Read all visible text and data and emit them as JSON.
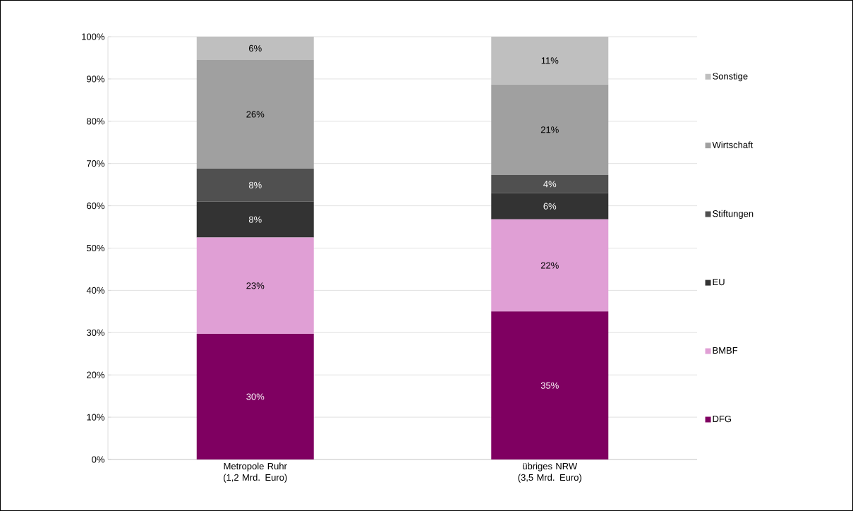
{
  "chart_data": {
    "type": "bar",
    "stacked": true,
    "categories": [
      "Metropole Ruhr (1,2 Mrd. Euro)",
      "übriges NRW (3,5 Mrd. Euro)"
    ],
    "series": [
      {
        "name": "DFG",
        "color": "#7f0061",
        "values": [
          29.7,
          35.0
        ],
        "value_labels": [
          "30%",
          "35%"
        ]
      },
      {
        "name": "BMBF",
        "color": "#e09fd5",
        "values": [
          22.8,
          21.8
        ],
        "value_labels": [
          "23%",
          "22%"
        ]
      },
      {
        "name": "EU",
        "color": "#333333",
        "values": [
          8.5,
          6.2
        ],
        "value_labels": [
          "8%",
          "6%"
        ]
      },
      {
        "name": "Stiftungen",
        "color": "#505050",
        "values": [
          7.8,
          4.3
        ],
        "value_labels": [
          "8%",
          "4%"
        ]
      },
      {
        "name": "Wirtschaft",
        "color": "#a0a0a0",
        "values": [
          25.7,
          21.4
        ],
        "value_labels": [
          "26%",
          "21%"
        ]
      },
      {
        "name": "Sonstige",
        "color": "#bfbfbf",
        "values": [
          5.5,
          11.3
        ],
        "value_labels": [
          "6%",
          "11%"
        ]
      }
    ],
    "ylim": [
      0,
      100
    ],
    "yticks": [
      {
        "value": 0,
        "label": "0%"
      },
      {
        "value": 10,
        "label": "10%"
      },
      {
        "value": 20,
        "label": "20%"
      },
      {
        "value": 30,
        "label": "30%"
      },
      {
        "value": 40,
        "label": "40%"
      },
      {
        "value": 50,
        "label": "50%"
      },
      {
        "value": 60,
        "label": "60%"
      },
      {
        "value": 70,
        "label": "70%"
      },
      {
        "value": 80,
        "label": "80%"
      },
      {
        "value": 90,
        "label": "90%"
      },
      {
        "value": 100,
        "label": "100%"
      }
    ],
    "grid": "y",
    "legend": "right"
  }
}
